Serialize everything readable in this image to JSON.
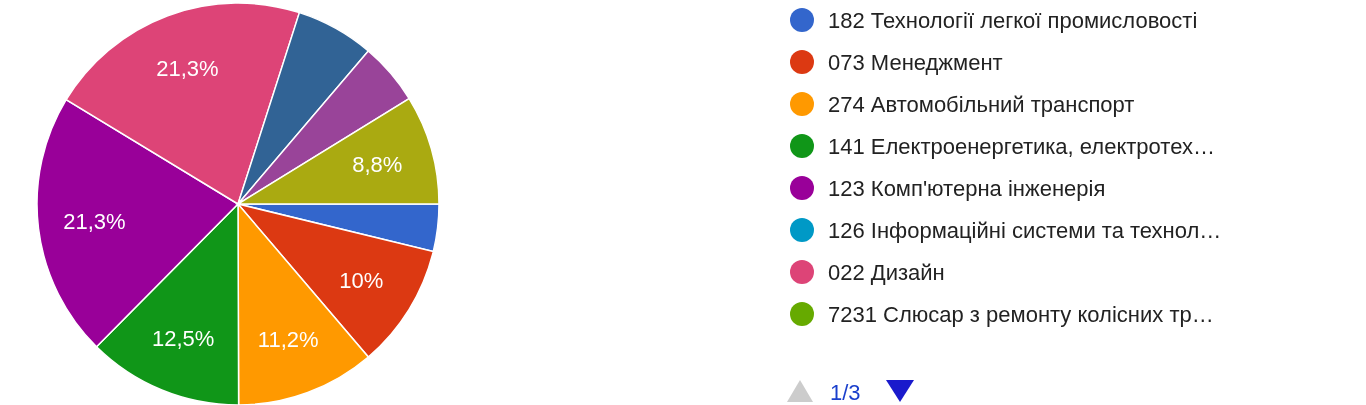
{
  "chart_data": {
    "type": "pie",
    "categories": [
      "182 Технології легкої промисловості",
      "073 Менеджмент",
      "274 Автомобільний транспорт",
      "141 Електроенергетика, електротех…",
      "123 Комп'ютерна інженерія",
      "126 Інформаційні системи та технол…",
      "022 Дизайн",
      "7231 Слюсар з ремонту колісних тр…",
      null,
      null,
      null
    ],
    "values": [
      3.8,
      10,
      11.2,
      12.5,
      21.3,
      0,
      21.3,
      0,
      6.3,
      5,
      8.8
    ],
    "colors": [
      "#3366cc",
      "#dc3912",
      "#ff9900",
      "#109618",
      "#990099",
      "#0099c6",
      "#dd4477",
      "#66aa00",
      "#316395",
      "#994499",
      "#aaaa11"
    ],
    "value_labels": [
      null,
      "10%",
      "11,2%",
      "12,5%",
      "21,3%",
      null,
      "21,3%",
      null,
      null,
      null,
      "8,8%"
    ],
    "legend": "right",
    "annotations": [
      "1/3"
    ]
  }
}
